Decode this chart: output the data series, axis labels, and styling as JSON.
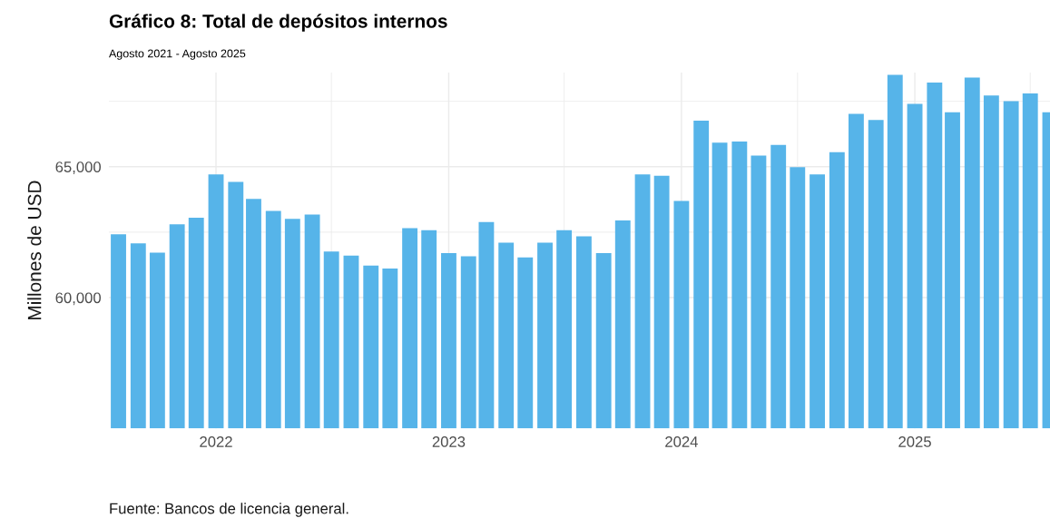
{
  "chart_data": {
    "type": "bar",
    "title": "Gráfico 8: Total de depósitos internos",
    "subtitle": "Agosto 2021 - Agosto 2025",
    "ylabel": "Millones de USD",
    "annotations": [
      "Fuente: Bancos de licencia general."
    ],
    "x": [
      "2021-08",
      "2021-09",
      "2021-10",
      "2021-11",
      "2021-12",
      "2022-01",
      "2022-02",
      "2022-03",
      "2022-04",
      "2022-05",
      "2022-06",
      "2022-07",
      "2022-08",
      "2022-09",
      "2022-10",
      "2022-11",
      "2022-12",
      "2023-01",
      "2023-02",
      "2023-03",
      "2023-04",
      "2023-05",
      "2023-06",
      "2023-07",
      "2023-08",
      "2023-09",
      "2023-10",
      "2023-11",
      "2023-12",
      "2024-01",
      "2024-02",
      "2024-03",
      "2024-04",
      "2024-05",
      "2024-06",
      "2024-07",
      "2024-08",
      "2024-09",
      "2024-10",
      "2024-11",
      "2024-12",
      "2025-01",
      "2025-02",
      "2025-03",
      "2025-04",
      "2025-05",
      "2025-06",
      "2025-07",
      "2025-08"
    ],
    "values": [
      62420,
      62070,
      61720,
      62800,
      63050,
      64710,
      64420,
      63770,
      63310,
      63010,
      63170,
      61760,
      61600,
      61220,
      61110,
      62650,
      62570,
      61700,
      61580,
      62890,
      62100,
      61530,
      62100,
      62570,
      62340,
      61700,
      62950,
      64710,
      64650,
      63690,
      66760,
      65920,
      65960,
      65430,
      65830,
      64980,
      64710,
      65560,
      67020,
      66790,
      68510,
      67400,
      68220,
      67080,
      68410,
      67720,
      67510,
      67800,
      67080
    ],
    "color": "#56b4e9",
    "xlim": [
      "2021-07-17",
      "2025-08-01"
    ],
    "xticks": [
      {
        "value": "2022-01",
        "label": "2022"
      },
      {
        "value": "2022-07",
        "label": null
      },
      {
        "value": "2023-01",
        "label": "2023"
      },
      {
        "value": "2023-07",
        "label": null
      },
      {
        "value": "2024-01",
        "label": "2024"
      },
      {
        "value": "2024-07",
        "label": null
      },
      {
        "value": "2025-01",
        "label": "2025"
      },
      {
        "value": "2025-07",
        "label": null
      }
    ],
    "ylim": [
      55000,
      68600
    ],
    "yticks": [
      {
        "value": 60000,
        "label": "60,000"
      },
      {
        "value": 62500,
        "label": null
      },
      {
        "value": 65000,
        "label": "65,000"
      },
      {
        "value": 67500,
        "label": null
      }
    ],
    "grid": true
  }
}
